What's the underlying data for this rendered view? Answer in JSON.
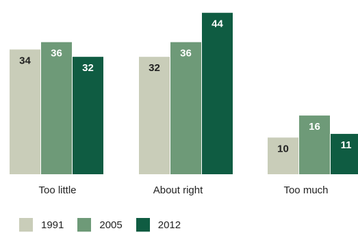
{
  "chart_data": {
    "type": "bar",
    "categories": [
      "Too little",
      "About right",
      "Too much"
    ],
    "series": [
      {
        "name": "1991",
        "values": [
          34,
          32,
          10
        ],
        "color": "#c9cdb9",
        "label_color": "#222222"
      },
      {
        "name": "2005",
        "values": [
          36,
          36,
          16
        ],
        "color": "#6e9a78",
        "label_color": "#ffffff"
      },
      {
        "name": "2012",
        "values": [
          32,
          44,
          11
        ],
        "color": "#0f5c42",
        "label_color": "#ffffff"
      }
    ],
    "ylim": [
      0,
      46
    ],
    "grid": false,
    "legend_position": "bottom-left"
  }
}
